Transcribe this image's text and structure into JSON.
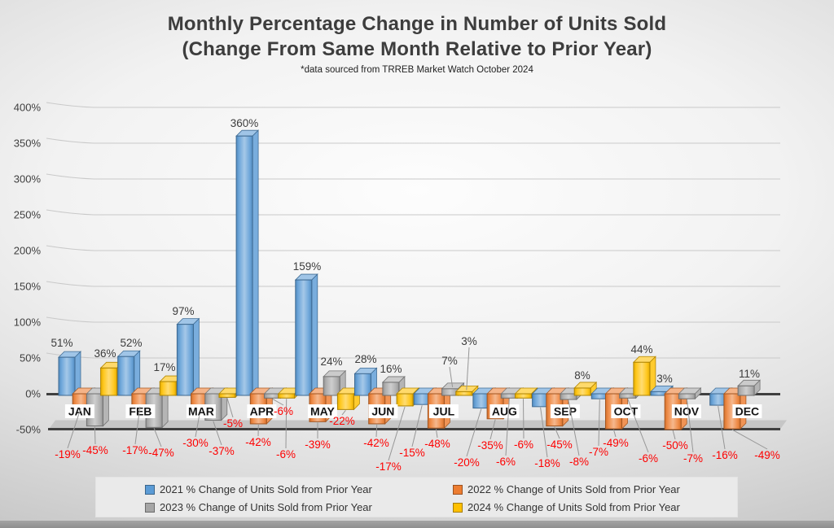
{
  "page": {
    "title_line1": "Monthly Percentage Change in Number of Units Sold",
    "title_line2": "(Change From Same Month Relative to Prior Year)",
    "subtitle": "*data sourced from TRREB Market Watch October 2024"
  },
  "chart_data": {
    "type": "bar",
    "title": "Monthly Percentage Change in Number of Units Sold (Change From Same Month Relative to Prior Year)",
    "footnote": "*data sourced from TRREB Market Watch October 2024",
    "categories": [
      "JAN",
      "FEB",
      "MAR",
      "APR",
      "MAY",
      "JUN",
      "JUL",
      "AUG",
      "SEP",
      "OCT",
      "NOV",
      "DEC"
    ],
    "series": [
      {
        "name": "2021 % Change of Units Sold from Prior Year",
        "color": "#5B9BD5",
        "values": [
          51,
          52,
          97,
          360,
          159,
          28,
          -15,
          -20,
          -18,
          -7,
          3,
          -16
        ]
      },
      {
        "name": "2022 % Change of Units Sold from Prior Year",
        "color": "#ED7D31",
        "values": [
          -19,
          -17,
          -30,
          -42,
          -39,
          -42,
          -48,
          -35,
          -45,
          -49,
          -50,
          -49
        ]
      },
      {
        "name": "2023 % Change of Units Sold from Prior Year",
        "color": "#A5A5A5",
        "values": [
          -45,
          -47,
          -37,
          -6,
          24,
          16,
          7,
          -6,
          -8,
          -6,
          -7,
          11
        ]
      },
      {
        "name": "2024 % Change of Units Sold from Prior Year",
        "color": "#FFC000",
        "values": [
          36,
          17,
          -5,
          -6,
          -22,
          -17,
          3,
          -6,
          8,
          44,
          null,
          null
        ]
      }
    ],
    "yticks": [
      400,
      350,
      300,
      250,
      200,
      150,
      100,
      50,
      0,
      -50
    ],
    "ytick_suffix": "%",
    "ylim": [
      -50,
      400
    ],
    "grid": true,
    "legend_position": "bottom-center",
    "label_colors": {
      "positive": "#3c3c3c",
      "negative": "#fe0000"
    },
    "label_pos": [
      [
        [
          76,
          415
        ],
        [
          161,
          415
        ],
        [
          225,
          376
        ],
        [
          300,
          145
        ],
        [
          377,
          321
        ],
        [
          449,
          435
        ],
        [
          506,
          550
        ],
        [
          573,
          562
        ],
        [
          672,
          563
        ],
        [
          735,
          549
        ],
        [
          816,
          459
        ],
        [
          890,
          553
        ]
      ],
      [
        [
          83,
          552
        ],
        [
          166,
          547
        ],
        [
          240,
          538
        ],
        [
          317,
          537
        ],
        [
          390,
          540
        ],
        [
          462,
          538
        ],
        [
          537,
          539
        ],
        [
          602,
          541
        ],
        [
          687,
          540
        ],
        [
          756,
          538
        ],
        [
          829,
          541
        ],
        [
          942,
          553
        ]
      ],
      [
        [
          117,
          547
        ],
        [
          198,
          550
        ],
        [
          272,
          548
        ],
        [
          348,
          499
        ],
        [
          407,
          438
        ],
        [
          480,
          447
        ],
        [
          552,
          437
        ],
        [
          621,
          561
        ],
        [
          711,
          561
        ],
        [
          796,
          557
        ],
        [
          851,
          557
        ],
        [
          920,
          453
        ]
      ],
      [
        [
          129,
          428
        ],
        [
          202,
          445
        ],
        [
          286,
          514
        ],
        [
          351,
          552
        ],
        [
          420,
          511
        ],
        [
          477,
          567
        ],
        [
          576,
          413
        ],
        [
          643,
          540
        ],
        [
          715,
          455
        ],
        [
          788,
          423
        ],
        null,
        null
      ]
    ]
  }
}
